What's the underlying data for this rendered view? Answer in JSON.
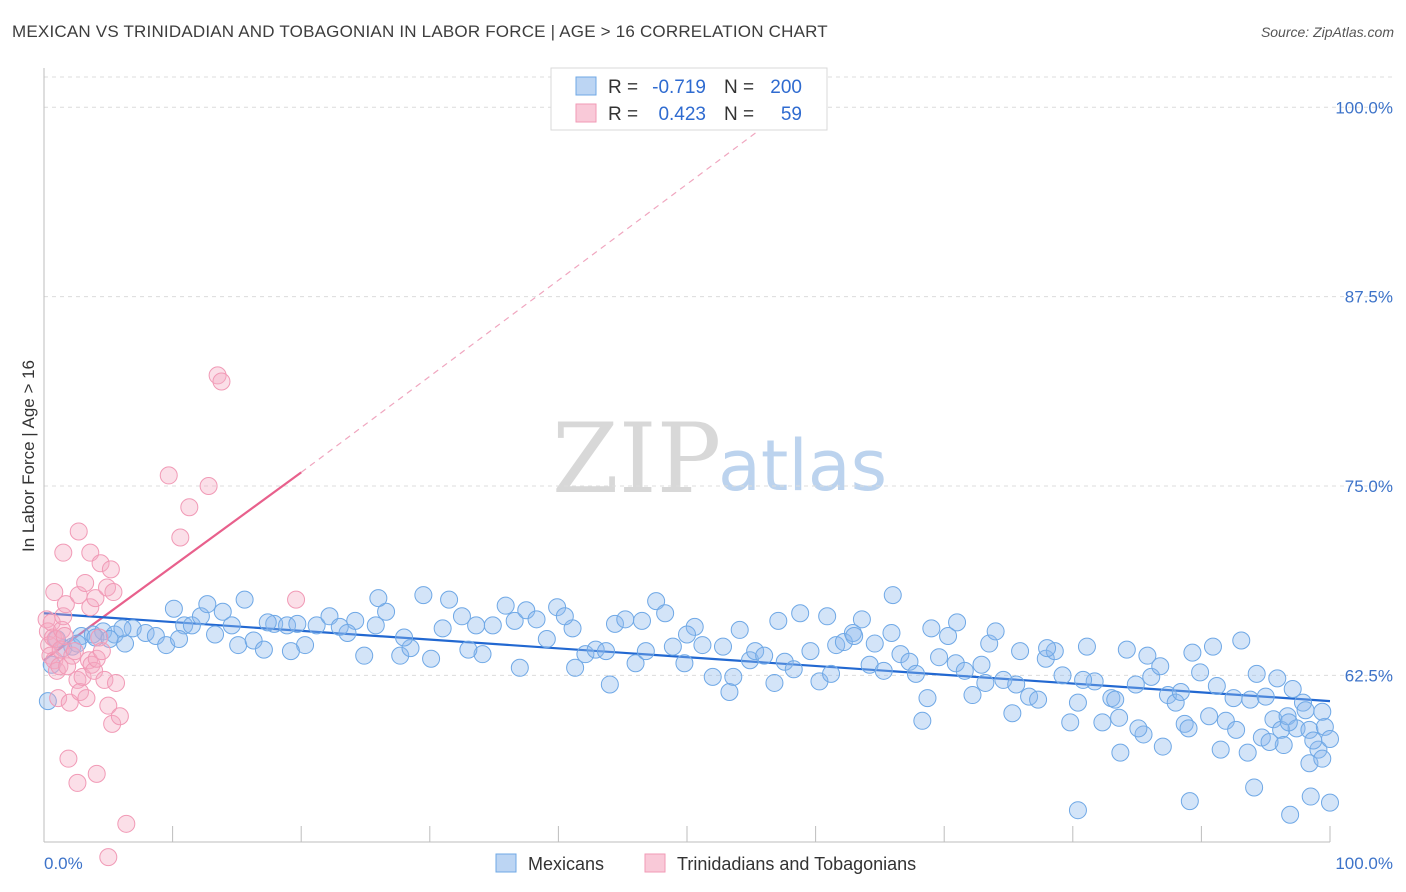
{
  "title": "MEXICAN VS TRINIDADIAN AND TOBAGONIAN IN LABOR FORCE | AGE > 16 CORRELATION CHART",
  "source": "Source: ZipAtlas.com",
  "watermark": {
    "zip": "ZIP",
    "atlas": "atlas"
  },
  "legend": {
    "rows": [
      {
        "r_label": "R =",
        "r_value": "-0.719",
        "n_label": "N =",
        "n_value": "200"
      },
      {
        "r_label": "R =",
        "r_value": "0.423",
        "n_label": "N =",
        "n_value": "59"
      }
    ]
  },
  "bottom_legend": [
    "Mexicans",
    "Trinidadians and Tobagonians"
  ],
  "chart_data": {
    "type": "scatter",
    "xlabel": "",
    "ylabel": "In Labor Force | Age > 16",
    "x_tick_labels": [
      "0.0%",
      "100.0%"
    ],
    "y_tick_labels": [
      "100.0%",
      "87.5%",
      "75.0%",
      "62.5%"
    ],
    "y_ticks": [
      100.0,
      87.5,
      75.0,
      62.5
    ],
    "xlim": [
      0,
      100
    ],
    "ylim": [
      51.5,
      102.0
    ],
    "grid": true,
    "legend_position": "top-center",
    "colors": {
      "mexicans": "#6fa8e6",
      "trinidadians": "#f19ab6",
      "mexicans_line": "#2268d1",
      "trinidadians_line": "#e8608c"
    },
    "series": [
      {
        "name": "Mexicans",
        "r": -0.719,
        "n": 200,
        "trend": {
          "x": [
            0,
            100
          ],
          "y": [
            66.6,
            60.8
          ]
        },
        "points": [
          [
            0.3,
            60.8
          ],
          [
            0.6,
            63.2
          ],
          [
            1.5,
            64.3
          ],
          [
            2.2,
            64.4
          ],
          [
            2.9,
            65.1
          ],
          [
            3.8,
            65.2
          ],
          [
            4.6,
            65.4
          ],
          [
            5.5,
            65.2
          ],
          [
            6.3,
            64.6
          ],
          [
            6.9,
            65.6
          ],
          [
            7.9,
            65.3
          ],
          [
            8.7,
            65.1
          ],
          [
            9.5,
            64.5
          ],
          [
            10.1,
            66.9
          ],
          [
            10.9,
            65.8
          ],
          [
            11.5,
            65.8
          ],
          [
            12.2,
            66.4
          ],
          [
            13.3,
            65.2
          ],
          [
            13.9,
            66.7
          ],
          [
            14.6,
            65.8
          ],
          [
            15.1,
            64.5
          ],
          [
            15.6,
            67.5
          ],
          [
            16.3,
            64.8
          ],
          [
            17.1,
            64.2
          ],
          [
            17.9,
            65.9
          ],
          [
            18.9,
            65.8
          ],
          [
            19.7,
            65.9
          ],
          [
            20.3,
            64.5
          ],
          [
            21.2,
            65.8
          ],
          [
            22.2,
            66.4
          ],
          [
            23.0,
            65.7
          ],
          [
            24.2,
            66.1
          ],
          [
            24.9,
            63.8
          ],
          [
            25.8,
            65.8
          ],
          [
            26.6,
            66.7
          ],
          [
            27.7,
            63.8
          ],
          [
            28.5,
            64.3
          ],
          [
            29.5,
            67.8
          ],
          [
            30.1,
            63.6
          ],
          [
            31.5,
            67.5
          ],
          [
            32.5,
            66.4
          ],
          [
            33.6,
            65.8
          ],
          [
            34.1,
            63.9
          ],
          [
            34.9,
            65.8
          ],
          [
            35.9,
            67.1
          ],
          [
            36.6,
            66.1
          ],
          [
            37.5,
            66.8
          ],
          [
            38.3,
            66.2
          ],
          [
            39.1,
            64.9
          ],
          [
            39.9,
            67.0
          ],
          [
            41.1,
            65.6
          ],
          [
            41.3,
            63.0
          ],
          [
            42.1,
            63.9
          ],
          [
            42.9,
            64.2
          ],
          [
            43.7,
            64.1
          ],
          [
            44.4,
            65.9
          ],
          [
            45.2,
            66.2
          ],
          [
            46.0,
            63.3
          ],
          [
            46.8,
            64.1
          ],
          [
            47.6,
            67.4
          ],
          [
            48.3,
            66.6
          ],
          [
            48.9,
            64.4
          ],
          [
            49.8,
            63.3
          ],
          [
            50.6,
            65.7
          ],
          [
            51.2,
            64.5
          ],
          [
            52.0,
            62.4
          ],
          [
            52.8,
            64.4
          ],
          [
            53.3,
            61.4
          ],
          [
            54.1,
            65.5
          ],
          [
            54.9,
            63.5
          ],
          [
            55.3,
            64.1
          ],
          [
            56.0,
            63.8
          ],
          [
            56.8,
            62.0
          ],
          [
            57.6,
            63.4
          ],
          [
            58.3,
            62.9
          ],
          [
            58.8,
            66.6
          ],
          [
            59.6,
            64.1
          ],
          [
            60.3,
            62.1
          ],
          [
            60.9,
            66.4
          ],
          [
            61.6,
            64.5
          ],
          [
            62.2,
            64.7
          ],
          [
            62.9,
            65.3
          ],
          [
            63.6,
            66.2
          ],
          [
            64.2,
            63.2
          ],
          [
            64.6,
            64.6
          ],
          [
            65.3,
            62.8
          ],
          [
            65.9,
            65.3
          ],
          [
            66.6,
            63.9
          ],
          [
            67.3,
            63.4
          ],
          [
            67.8,
            62.6
          ],
          [
            68.3,
            59.5
          ],
          [
            69.0,
            65.6
          ],
          [
            69.6,
            63.7
          ],
          [
            70.3,
            65.1
          ],
          [
            70.9,
            63.3
          ],
          [
            71.6,
            62.8
          ],
          [
            72.2,
            61.2
          ],
          [
            72.9,
            63.2
          ],
          [
            73.5,
            64.6
          ],
          [
            74.0,
            65.4
          ],
          [
            74.6,
            62.2
          ],
          [
            75.3,
            60.0
          ],
          [
            75.9,
            64.1
          ],
          [
            76.6,
            61.1
          ],
          [
            77.3,
            60.9
          ],
          [
            77.9,
            63.6
          ],
          [
            78.6,
            64.1
          ],
          [
            79.2,
            62.5
          ],
          [
            79.8,
            59.4
          ],
          [
            80.4,
            60.7
          ],
          [
            81.1,
            64.4
          ],
          [
            81.7,
            62.1
          ],
          [
            82.3,
            59.4
          ],
          [
            83.0,
            61.0
          ],
          [
            83.6,
            59.7
          ],
          [
            84.2,
            64.2
          ],
          [
            84.9,
            61.9
          ],
          [
            85.5,
            58.6
          ],
          [
            86.1,
            62.4
          ],
          [
            86.8,
            63.1
          ],
          [
            87.4,
            61.2
          ],
          [
            88.0,
            60.7
          ],
          [
            88.7,
            59.3
          ],
          [
            89.3,
            64.0
          ],
          [
            89.9,
            62.7
          ],
          [
            90.6,
            59.8
          ],
          [
            91.2,
            61.8
          ],
          [
            91.9,
            59.5
          ],
          [
            92.5,
            61.0
          ],
          [
            93.1,
            64.8
          ],
          [
            93.8,
            60.9
          ],
          [
            94.3,
            62.6
          ],
          [
            95.0,
            61.1
          ],
          [
            95.6,
            59.6
          ],
          [
            96.2,
            58.9
          ],
          [
            96.7,
            59.8
          ],
          [
            97.4,
            59.0
          ],
          [
            97.9,
            60.7
          ],
          [
            98.4,
            58.9
          ],
          [
            99.1,
            57.6
          ],
          [
            99.6,
            59.1
          ],
          [
            100.0,
            58.3
          ],
          [
            10.5,
            64.9
          ],
          [
            12.7,
            67.2
          ],
          [
            17.4,
            66.0
          ],
          [
            19.2,
            64.1
          ],
          [
            23.6,
            65.3
          ],
          [
            26.0,
            67.6
          ],
          [
            28.0,
            65.0
          ],
          [
            31.0,
            65.6
          ],
          [
            33.0,
            64.2
          ],
          [
            37.0,
            63.0
          ],
          [
            40.5,
            66.4
          ],
          [
            44.0,
            61.9
          ],
          [
            46.5,
            66.1
          ],
          [
            50.0,
            65.2
          ],
          [
            53.6,
            62.4
          ],
          [
            57.1,
            66.1
          ],
          [
            61.2,
            62.6
          ],
          [
            63.0,
            65.1
          ],
          [
            66.0,
            67.8
          ],
          [
            68.7,
            61.0
          ],
          [
            71.0,
            66.0
          ],
          [
            73.2,
            62.0
          ],
          [
            75.6,
            61.9
          ],
          [
            78.0,
            64.3
          ],
          [
            80.8,
            62.2
          ],
          [
            83.3,
            60.9
          ],
          [
            85.8,
            63.8
          ],
          [
            88.4,
            61.4
          ],
          [
            90.9,
            64.4
          ],
          [
            92.7,
            58.9
          ],
          [
            94.7,
            58.4
          ],
          [
            96.4,
            57.9
          ],
          [
            98.7,
            58.2
          ],
          [
            95.9,
            62.3
          ],
          [
            97.1,
            61.6
          ],
          [
            98.1,
            60.2
          ],
          [
            99.4,
            60.1
          ],
          [
            83.7,
            57.4
          ],
          [
            85.1,
            59.0
          ],
          [
            87.0,
            57.8
          ],
          [
            89.0,
            59.0
          ],
          [
            91.5,
            57.6
          ],
          [
            93.6,
            57.4
          ],
          [
            95.3,
            58.1
          ],
          [
            96.8,
            59.4
          ],
          [
            98.4,
            56.7
          ],
          [
            99.4,
            57.0
          ],
          [
            100.0,
            54.1
          ],
          [
            80.4,
            53.6
          ],
          [
            89.1,
            54.2
          ],
          [
            94.1,
            55.1
          ],
          [
            96.9,
            53.3
          ],
          [
            98.5,
            54.5
          ],
          [
            1.0,
            64.9
          ],
          [
            2.6,
            64.6
          ],
          [
            4.0,
            65.0
          ],
          [
            5.1,
            64.9
          ],
          [
            6.1,
            65.6
          ]
        ]
      },
      {
        "name": "Trinidadians and Tobagonians",
        "r": 0.423,
        "n": 59,
        "trend": {
          "x": [
            0,
            20
          ],
          "y": [
            63.5,
            75.9
          ]
        },
        "trend_dashed": {
          "x": [
            20,
            58
          ],
          "y": [
            75.9,
            100.0
          ]
        },
        "points": [
          [
            0.2,
            66.2
          ],
          [
            0.3,
            65.4
          ],
          [
            0.4,
            64.5
          ],
          [
            0.5,
            63.8
          ],
          [
            0.6,
            66.0
          ],
          [
            0.7,
            65.0
          ],
          [
            0.8,
            63.5
          ],
          [
            0.9,
            64.9
          ],
          [
            1.0,
            62.8
          ],
          [
            1.1,
            61.0
          ],
          [
            1.2,
            63.1
          ],
          [
            1.3,
            64.2
          ],
          [
            1.4,
            65.5
          ],
          [
            1.5,
            66.4
          ],
          [
            1.6,
            65.1
          ],
          [
            1.7,
            67.2
          ],
          [
            1.8,
            63.1
          ],
          [
            2.0,
            60.7
          ],
          [
            2.2,
            63.8
          ],
          [
            2.4,
            64.1
          ],
          [
            2.6,
            62.2
          ],
          [
            2.8,
            61.4
          ],
          [
            3.0,
            62.4
          ],
          [
            3.3,
            61.0
          ],
          [
            3.5,
            63.5
          ],
          [
            3.7,
            63.2
          ],
          [
            3.9,
            62.8
          ],
          [
            4.1,
            63.6
          ],
          [
            4.3,
            65.0
          ],
          [
            4.5,
            64.1
          ],
          [
            4.7,
            62.2
          ],
          [
            5.0,
            60.5
          ],
          [
            5.3,
            59.3
          ],
          [
            5.6,
            62.0
          ],
          [
            5.9,
            59.8
          ],
          [
            2.7,
            67.8
          ],
          [
            3.2,
            68.6
          ],
          [
            3.6,
            67.0
          ],
          [
            4.0,
            67.6
          ],
          [
            4.9,
            68.3
          ],
          [
            5.4,
            68.0
          ],
          [
            0.8,
            68.0
          ],
          [
            1.5,
            70.6
          ],
          [
            2.7,
            72.0
          ],
          [
            3.6,
            70.6
          ],
          [
            4.4,
            69.9
          ],
          [
            5.2,
            69.5
          ],
          [
            9.7,
            75.7
          ],
          [
            10.6,
            71.6
          ],
          [
            11.3,
            73.6
          ],
          [
            12.8,
            75.0
          ],
          [
            13.5,
            82.3
          ],
          [
            13.8,
            81.9
          ],
          [
            19.6,
            67.5
          ],
          [
            1.9,
            57.0
          ],
          [
            2.6,
            55.4
          ],
          [
            4.1,
            56.0
          ],
          [
            6.4,
            52.7
          ],
          [
            5.0,
            50.5
          ]
        ]
      }
    ]
  }
}
